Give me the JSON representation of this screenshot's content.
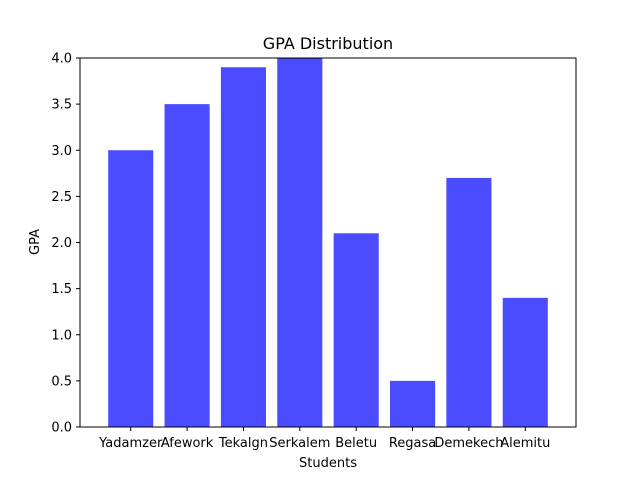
{
  "chart_data": {
    "type": "bar",
    "title": "GPA Distribution",
    "xlabel": "Students",
    "ylabel": "GPA",
    "categories": [
      "Yadamzer",
      "Afework",
      "Tekalgn",
      "Serkalem",
      "Beletu",
      "Regasa",
      "Demekech",
      "Alemitu"
    ],
    "values": [
      3.0,
      3.5,
      3.9,
      4.0,
      2.1,
      0.5,
      2.7,
      1.4
    ],
    "ylim": [
      0,
      4.0
    ],
    "yticks": [
      "0.0",
      "0.5",
      "1.0",
      "1.5",
      "2.0",
      "2.5",
      "3.0",
      "3.5",
      "4.0"
    ],
    "bar_color": "#4b4bff",
    "grid": false,
    "legend": "none"
  }
}
